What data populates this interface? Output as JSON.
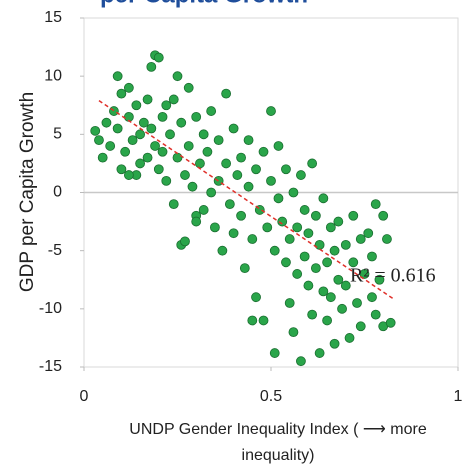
{
  "chart_data": {
    "type": "scatter",
    "title": "per Capita Growth",
    "xlabel": [
      "UNDP Gender Inequality Index ( ⟶ more",
      "inequality)"
    ],
    "ylabel": "GDP per Capita Growth",
    "xlim": [
      0,
      1
    ],
    "xticks": [
      0,
      0.5,
      1
    ],
    "ylim": [
      -15,
      15
    ],
    "yticks": [
      15,
      10,
      5,
      0,
      -5,
      -10,
      -15
    ],
    "zero_line": true,
    "series": [
      {
        "color": "#2aa54a",
        "x": [
          0.03,
          0.04,
          0.05,
          0.06,
          0.07,
          0.08,
          0.09,
          0.09,
          0.1,
          0.1,
          0.11,
          0.12,
          0.12,
          0.13,
          0.14,
          0.14,
          0.15,
          0.15,
          0.16,
          0.17,
          0.17,
          0.18,
          0.18,
          0.19,
          0.19,
          0.2,
          0.2,
          0.21,
          0.21,
          0.22,
          0.22,
          0.23,
          0.24,
          0.24,
          0.25,
          0.25,
          0.26,
          0.26,
          0.27,
          0.27,
          0.28,
          0.28,
          0.29,
          0.3,
          0.3,
          0.31,
          0.32,
          0.32,
          0.33,
          0.34,
          0.34,
          0.35,
          0.36,
          0.36,
          0.37,
          0.38,
          0.38,
          0.39,
          0.4,
          0.4,
          0.41,
          0.42,
          0.42,
          0.43,
          0.44,
          0.44,
          0.45,
          0.46,
          0.46,
          0.47,
          0.48,
          0.48,
          0.49,
          0.5,
          0.5,
          0.51,
          0.52,
          0.52,
          0.53,
          0.54,
          0.54,
          0.55,
          0.55,
          0.56,
          0.56,
          0.57,
          0.57,
          0.58,
          0.58,
          0.59,
          0.59,
          0.6,
          0.6,
          0.61,
          0.61,
          0.62,
          0.62,
          0.63,
          0.63,
          0.64,
          0.64,
          0.65,
          0.65,
          0.66,
          0.66,
          0.67,
          0.67,
          0.68,
          0.68,
          0.69,
          0.7,
          0.7,
          0.71,
          0.72,
          0.72,
          0.73,
          0.74,
          0.74,
          0.75,
          0.76,
          0.77,
          0.77,
          0.78,
          0.78,
          0.79,
          0.8,
          0.8,
          0.81,
          0.82,
          0.51,
          0.45,
          0.3,
          0.12
        ],
        "y": [
          5.3,
          4.5,
          3.0,
          6.0,
          4.0,
          7.0,
          10.0,
          5.5,
          2.0,
          8.5,
          3.5,
          6.5,
          9.0,
          4.5,
          1.5,
          7.5,
          5.0,
          2.5,
          6.0,
          3.0,
          8.0,
          5.5,
          10.8,
          4.0,
          11.8,
          11.6,
          2.0,
          6.5,
          3.5,
          7.5,
          1.0,
          5.0,
          8.0,
          -1.0,
          3.0,
          10.0,
          -4.5,
          6.0,
          1.5,
          -4.2,
          4.0,
          9.0,
          0.5,
          6.5,
          -2.0,
          2.5,
          5.0,
          -1.5,
          3.5,
          7.0,
          0.0,
          -3.0,
          4.5,
          1.0,
          -5.0,
          2.5,
          8.5,
          -1.0,
          5.5,
          -3.5,
          1.5,
          -2.0,
          3.0,
          -6.5,
          0.5,
          4.5,
          -4.0,
          2.0,
          -9.0,
          -1.5,
          3.5,
          -11.0,
          -3.0,
          1.0,
          7.0,
          -5.0,
          -0.5,
          4.0,
          -2.5,
          -6.0,
          2.0,
          -9.5,
          -4.0,
          0.0,
          -12.0,
          -3.0,
          -7.0,
          1.5,
          -14.5,
          -5.5,
          -1.5,
          -8.0,
          -3.5,
          2.5,
          -10.5,
          -6.5,
          -2.0,
          -13.8,
          -4.5,
          -8.5,
          -0.5,
          -6.0,
          -11.0,
          -3.0,
          -9.0,
          -5.0,
          -13.0,
          -7.5,
          -2.5,
          -10.0,
          -4.5,
          -8.0,
          -12.5,
          -6.0,
          -2.0,
          -9.5,
          -4.0,
          -11.5,
          -7.0,
          -3.5,
          -9.0,
          -5.5,
          -10.5,
          -1.0,
          -7.5,
          -2.0,
          -11.5,
          -4.0,
          -11.2,
          -13.8,
          -11.0,
          -2.5,
          1.5
        ]
      }
    ],
    "trendline": {
      "color": "#e0302a",
      "x": [
        0.04,
        0.83
      ],
      "y": [
        7.9,
        -9.2
      ],
      "label": "R² = 0.616"
    }
  }
}
